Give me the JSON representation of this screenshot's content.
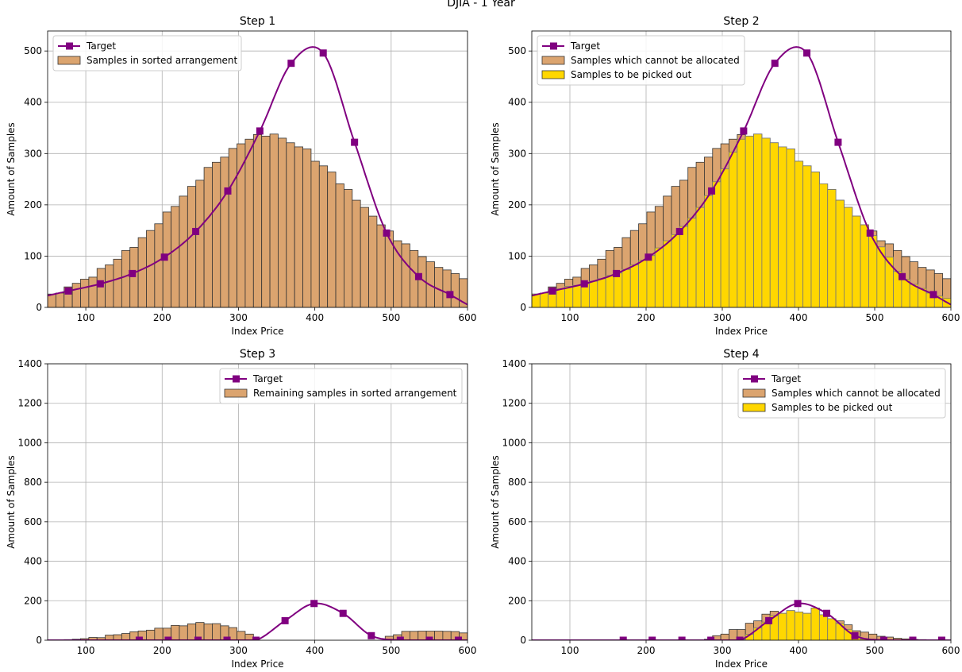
{
  "figure_title": "DJIA - 1 Year",
  "colors": {
    "target": "#800080",
    "samples": "#dba46f",
    "picked": "#ffd700",
    "grid": "#b0b0b0"
  },
  "chart_data": [
    {
      "type": "bar",
      "title": "Step 1",
      "xlabel": "Index Price",
      "ylabel": "Amount of Samples",
      "xlim": [
        50,
        600
      ],
      "ylim": [
        0,
        539
      ],
      "xticks": [
        100,
        200,
        300,
        400,
        500,
        600
      ],
      "yticks": [
        0,
        100,
        200,
        300,
        400,
        500
      ],
      "grid": true,
      "legend_position": "top-left",
      "bin_range": [
        50,
        600
      ],
      "target": {
        "name": "Target",
        "x": [
          77,
          119,
          161,
          203,
          244,
          286,
          328,
          369,
          411,
          452,
          494,
          536,
          577
        ],
        "y": [
          32,
          46,
          66,
          98,
          148,
          227,
          344,
          476,
          496,
          322,
          145,
          60,
          25
        ]
      },
      "series": [
        {
          "name": "Samples in sorted arrangement",
          "color": "samples",
          "values": [
            26,
            28,
            40,
            47,
            55,
            59,
            76,
            83,
            94,
            111,
            117,
            136,
            150,
            163,
            186,
            197,
            217,
            236,
            248,
            273,
            283,
            293,
            310,
            319,
            328,
            337,
            334,
            338,
            330,
            321,
            313,
            309,
            285,
            276,
            264,
            241,
            230,
            209,
            195,
            178,
            161,
            149,
            130,
            124,
            111,
            99,
            89,
            78,
            73,
            66,
            56
          ]
        }
      ]
    },
    {
      "type": "bar",
      "title": "Step 2",
      "xlabel": "Index Price",
      "ylabel": "Amount of Samples",
      "xlim": [
        50,
        600
      ],
      "ylim": [
        0,
        539
      ],
      "xticks": [
        100,
        200,
        300,
        400,
        500,
        600
      ],
      "yticks": [
        0,
        100,
        200,
        300,
        400,
        500
      ],
      "grid": true,
      "legend_position": "top-left",
      "bin_range": [
        50,
        600
      ],
      "target": {
        "name": "Target",
        "x": [
          77,
          119,
          161,
          203,
          244,
          286,
          328,
          369,
          411,
          452,
          494,
          536,
          577
        ],
        "y": [
          32,
          46,
          66,
          98,
          148,
          227,
          344,
          476,
          496,
          322,
          145,
          60,
          25
        ]
      },
      "series": [
        {
          "name": "Samples which cannot be allocated",
          "color": "samples",
          "values": [
            26,
            28,
            40,
            47,
            55,
            59,
            76,
            83,
            94,
            111,
            117,
            136,
            150,
            163,
            186,
            197,
            217,
            236,
            248,
            273,
            283,
            293,
            310,
            319,
            328,
            337,
            334,
            338,
            330,
            321,
            313,
            309,
            285,
            276,
            264,
            241,
            230,
            209,
            195,
            178,
            161,
            149,
            130,
            124,
            111,
            99,
            89,
            78,
            73,
            66,
            56
          ]
        },
        {
          "name": "Samples to be picked out",
          "color": "picked",
          "values": [
            26,
            28,
            32,
            36,
            41,
            43,
            46,
            51,
            56,
            62,
            67,
            74,
            83,
            92,
            101,
            116,
            130,
            142,
            158,
            174,
            195,
            218,
            245,
            270,
            303,
            328,
            334,
            338,
            330,
            321,
            313,
            309,
            285,
            276,
            264,
            241,
            230,
            209,
            195,
            178,
            161,
            140,
            118,
            98,
            70,
            55,
            45,
            37,
            28,
            22,
            18
          ]
        }
      ]
    },
    {
      "type": "bar",
      "title": "Step 3",
      "xlabel": "Index Price",
      "ylabel": "Amount of Samples",
      "xlim": [
        50,
        600
      ],
      "ylim": [
        0,
        1400
      ],
      "xticks": [
        100,
        200,
        300,
        400,
        500,
        600
      ],
      "yticks": [
        0,
        200,
        400,
        600,
        800,
        1000,
        1200,
        1400
      ],
      "grid": true,
      "legend_position": "top-right",
      "bin_range": [
        50,
        600
      ],
      "target": {
        "name": "Target",
        "x": [
          170,
          208,
          247,
          285,
          323,
          361,
          399,
          437,
          474,
          512,
          550,
          588
        ],
        "y": [
          0,
          0,
          0,
          0,
          0,
          99,
          186,
          136,
          23,
          0,
          0,
          0
        ]
      },
      "series": [
        {
          "name": "Remaining samples in sorted arrangement",
          "color": "samples",
          "values": [
            0,
            0,
            3,
            5,
            8,
            14,
            13,
            26,
            28,
            34,
            43,
            47,
            51,
            61,
            61,
            75,
            73,
            83,
            90,
            83,
            84,
            73,
            64,
            45,
            31,
            0,
            0,
            0,
            0,
            0,
            0,
            0,
            0,
            0,
            0,
            0,
            0,
            0,
            0,
            0,
            0,
            20,
            28,
            45,
            45,
            46,
            46,
            46,
            45,
            44,
            37
          ]
        }
      ]
    },
    {
      "type": "bar",
      "title": "Step 4",
      "xlabel": "Index Price",
      "ylabel": "Amount of Samples",
      "xlim": [
        50,
        600
      ],
      "ylim": [
        0,
        1400
      ],
      "xticks": [
        100,
        200,
        300,
        400,
        500,
        600
      ],
      "yticks": [
        0,
        200,
        400,
        600,
        800,
        1000,
        1200,
        1400
      ],
      "grid": true,
      "legend_position": "top-right",
      "bin_range": [
        50,
        600
      ],
      "target": {
        "name": "Target",
        "x": [
          170,
          208,
          247,
          285,
          323,
          361,
          399,
          437,
          474,
          512,
          550,
          588
        ],
        "y": [
          0,
          0,
          0,
          0,
          0,
          99,
          186,
          136,
          23,
          0,
          0,
          0
        ]
      },
      "series": [
        {
          "name": "Samples which cannot be allocated",
          "color": "samples",
          "values": [
            0,
            0,
            0,
            0,
            0,
            0,
            0,
            0,
            0,
            0,
            0,
            0,
            0,
            0,
            0,
            0,
            0,
            0,
            0,
            0,
            2,
            5,
            23,
            31,
            54,
            54,
            86,
            98,
            132,
            147,
            136,
            150,
            143,
            136,
            163,
            129,
            109,
            98,
            78,
            48,
            41,
            31,
            20,
            16,
            10,
            7,
            4,
            3,
            0,
            0,
            0
          ]
        },
        {
          "name": "Samples to be picked out",
          "color": "picked",
          "values": [
            0,
            0,
            0,
            0,
            0,
            0,
            0,
            0,
            0,
            0,
            0,
            0,
            0,
            0,
            0,
            0,
            0,
            0,
            0,
            0,
            0,
            0,
            0,
            0,
            0,
            2,
            30,
            62,
            92,
            125,
            136,
            150,
            143,
            136,
            163,
            129,
            109,
            85,
            55,
            20,
            5,
            0,
            0,
            0,
            0,
            0,
            0,
            0,
            0,
            0,
            0
          ]
        }
      ]
    }
  ]
}
